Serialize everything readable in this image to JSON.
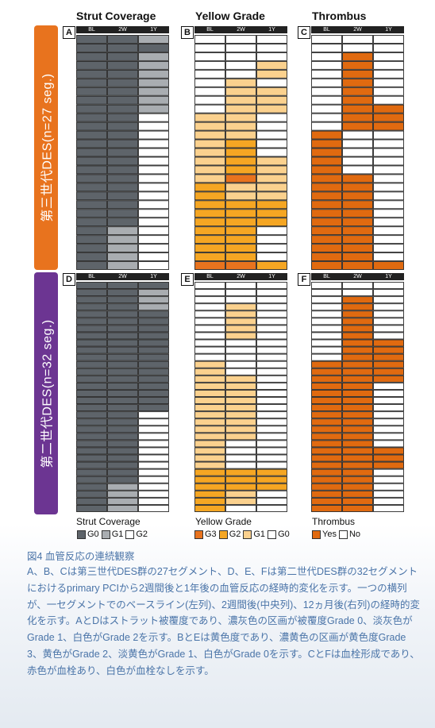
{
  "column_titles": [
    "Strut Coverage",
    "Yellow Grade",
    "Thrombus"
  ],
  "row_labels": [
    "第三世代DES(n=27 seg.)",
    "第二世代DES(n=32 seg.)"
  ],
  "time_labels": [
    "BL",
    "2W",
    "1Y"
  ],
  "colors": {
    "sidebar_top": "#e8731e",
    "sidebar_bottom": "#6c3592",
    "cov": {
      "G0": "#5e646a",
      "G1": "#a9adb1",
      "G2": "#ffffff"
    },
    "yel": {
      "G3": "#e8731e",
      "G2": "#f5a623",
      "G1": "#fbd18e",
      "G0": "#ffffff"
    },
    "thr": {
      "Yes": "#e06a10",
      "No": "#ffffff"
    }
  },
  "chart_data": [
    {
      "type": "heatmap",
      "panel": "A",
      "columns": [
        "BL",
        "2W",
        "1Y"
      ],
      "rows": [
        [
          0,
          0,
          1
        ],
        [
          0,
          0,
          0
        ],
        [
          0,
          0,
          1
        ],
        [
          0,
          0,
          1
        ],
        [
          0,
          0,
          1
        ],
        [
          0,
          0,
          1
        ],
        [
          0,
          0,
          1
        ],
        [
          0,
          0,
          1
        ],
        [
          0,
          0,
          1
        ],
        [
          0,
          0,
          2
        ],
        [
          0,
          0,
          2
        ],
        [
          0,
          0,
          2
        ],
        [
          0,
          0,
          2
        ],
        [
          0,
          0,
          2
        ],
        [
          0,
          0,
          2
        ],
        [
          0,
          0,
          2
        ],
        [
          0,
          0,
          2
        ],
        [
          0,
          0,
          2
        ],
        [
          0,
          0,
          2
        ],
        [
          0,
          0,
          2
        ],
        [
          0,
          0,
          2
        ],
        [
          0,
          0,
          2
        ],
        [
          0,
          1,
          2
        ],
        [
          0,
          1,
          2
        ],
        [
          0,
          1,
          2
        ],
        [
          0,
          1,
          2
        ],
        [
          0,
          1,
          2
        ]
      ]
    },
    {
      "type": "heatmap",
      "panel": "B",
      "columns": [
        "BL",
        "2W",
        "1Y"
      ],
      "rows": [
        [
          0,
          0,
          0
        ],
        [
          0,
          0,
          0
        ],
        [
          0,
          0,
          0
        ],
        [
          0,
          0,
          1
        ],
        [
          0,
          0,
          1
        ],
        [
          0,
          1,
          0
        ],
        [
          0,
          1,
          1
        ],
        [
          0,
          1,
          1
        ],
        [
          0,
          1,
          1
        ],
        [
          1,
          1,
          0
        ],
        [
          1,
          1,
          0
        ],
        [
          1,
          1,
          0
        ],
        [
          1,
          2,
          0
        ],
        [
          1,
          2,
          0
        ],
        [
          1,
          2,
          1
        ],
        [
          1,
          2,
          1
        ],
        [
          1,
          3,
          1
        ],
        [
          2,
          1,
          1
        ],
        [
          2,
          1,
          1
        ],
        [
          2,
          2,
          2
        ],
        [
          2,
          2,
          2
        ],
        [
          2,
          2,
          2
        ],
        [
          2,
          2,
          0
        ],
        [
          2,
          2,
          0
        ],
        [
          2,
          2,
          0
        ],
        [
          2,
          2,
          0
        ],
        [
          3,
          3,
          2
        ]
      ]
    },
    {
      "type": "heatmap",
      "panel": "C",
      "columns": [
        "BL",
        "2W",
        "1Y"
      ],
      "rows": [
        [
          0,
          0,
          0
        ],
        [
          0,
          0,
          0
        ],
        [
          0,
          1,
          0
        ],
        [
          0,
          1,
          0
        ],
        [
          0,
          1,
          0
        ],
        [
          0,
          1,
          0
        ],
        [
          0,
          1,
          0
        ],
        [
          0,
          1,
          0
        ],
        [
          0,
          1,
          1
        ],
        [
          0,
          1,
          1
        ],
        [
          0,
          1,
          1
        ],
        [
          1,
          0,
          0
        ],
        [
          1,
          0,
          0
        ],
        [
          1,
          0,
          0
        ],
        [
          1,
          0,
          0
        ],
        [
          1,
          0,
          0
        ],
        [
          1,
          1,
          0
        ],
        [
          1,
          1,
          0
        ],
        [
          1,
          1,
          0
        ],
        [
          1,
          1,
          0
        ],
        [
          1,
          1,
          0
        ],
        [
          1,
          1,
          0
        ],
        [
          1,
          1,
          0
        ],
        [
          1,
          1,
          0
        ],
        [
          1,
          1,
          0
        ],
        [
          1,
          1,
          0
        ],
        [
          1,
          1,
          1
        ]
      ]
    },
    {
      "type": "heatmap",
      "panel": "D",
      "columns": [
        "BL",
        "2W",
        "1Y"
      ],
      "rows": [
        [
          0,
          0,
          0
        ],
        [
          0,
          0,
          1
        ],
        [
          0,
          0,
          1
        ],
        [
          0,
          0,
          1
        ],
        [
          0,
          0,
          0
        ],
        [
          0,
          0,
          0
        ],
        [
          0,
          0,
          0
        ],
        [
          0,
          0,
          0
        ],
        [
          0,
          0,
          0
        ],
        [
          0,
          0,
          0
        ],
        [
          0,
          0,
          0
        ],
        [
          0,
          0,
          0
        ],
        [
          0,
          0,
          0
        ],
        [
          0,
          0,
          0
        ],
        [
          0,
          0,
          0
        ],
        [
          0,
          0,
          0
        ],
        [
          0,
          0,
          0
        ],
        [
          0,
          0,
          0
        ],
        [
          0,
          0,
          2
        ],
        [
          0,
          0,
          2
        ],
        [
          0,
          0,
          2
        ],
        [
          0,
          0,
          2
        ],
        [
          0,
          0,
          2
        ],
        [
          0,
          0,
          2
        ],
        [
          0,
          0,
          2
        ],
        [
          0,
          0,
          2
        ],
        [
          0,
          0,
          2
        ],
        [
          0,
          0,
          2
        ],
        [
          0,
          1,
          2
        ],
        [
          0,
          1,
          2
        ],
        [
          0,
          1,
          2
        ],
        [
          0,
          1,
          2
        ]
      ]
    },
    {
      "type": "heatmap",
      "panel": "E",
      "columns": [
        "BL",
        "2W",
        "1Y"
      ],
      "rows": [
        [
          0,
          0,
          0
        ],
        [
          0,
          0,
          0
        ],
        [
          0,
          0,
          0
        ],
        [
          0,
          1,
          0
        ],
        [
          0,
          1,
          0
        ],
        [
          0,
          1,
          0
        ],
        [
          0,
          1,
          0
        ],
        [
          0,
          1,
          0
        ],
        [
          0,
          0,
          0
        ],
        [
          0,
          0,
          0
        ],
        [
          0,
          0,
          0
        ],
        [
          1,
          0,
          0
        ],
        [
          1,
          0,
          0
        ],
        [
          1,
          1,
          0
        ],
        [
          1,
          1,
          0
        ],
        [
          1,
          1,
          0
        ],
        [
          1,
          1,
          0
        ],
        [
          1,
          1,
          0
        ],
        [
          1,
          1,
          0
        ],
        [
          1,
          1,
          0
        ],
        [
          1,
          1,
          0
        ],
        [
          1,
          1,
          0
        ],
        [
          1,
          0,
          0
        ],
        [
          1,
          0,
          0
        ],
        [
          1,
          0,
          0
        ],
        [
          1,
          0,
          0
        ],
        [
          2,
          2,
          2
        ],
        [
          2,
          2,
          2
        ],
        [
          2,
          2,
          2
        ],
        [
          2,
          1,
          0
        ],
        [
          2,
          1,
          0
        ],
        [
          2,
          0,
          0
        ]
      ]
    },
    {
      "type": "heatmap",
      "panel": "F",
      "columns": [
        "BL",
        "2W",
        "1Y"
      ],
      "rows": [
        [
          0,
          0,
          0
        ],
        [
          0,
          0,
          0
        ],
        [
          0,
          1,
          0
        ],
        [
          0,
          1,
          0
        ],
        [
          0,
          1,
          0
        ],
        [
          0,
          1,
          0
        ],
        [
          0,
          1,
          0
        ],
        [
          0,
          1,
          0
        ],
        [
          0,
          1,
          1
        ],
        [
          0,
          1,
          1
        ],
        [
          0,
          1,
          1
        ],
        [
          1,
          1,
          1
        ],
        [
          1,
          1,
          1
        ],
        [
          1,
          1,
          1
        ],
        [
          1,
          1,
          0
        ],
        [
          1,
          1,
          0
        ],
        [
          1,
          1,
          0
        ],
        [
          1,
          1,
          0
        ],
        [
          1,
          1,
          0
        ],
        [
          1,
          1,
          0
        ],
        [
          1,
          1,
          0
        ],
        [
          1,
          1,
          0
        ],
        [
          1,
          1,
          0
        ],
        [
          1,
          1,
          1
        ],
        [
          1,
          1,
          1
        ],
        [
          1,
          1,
          1
        ],
        [
          1,
          1,
          0
        ],
        [
          1,
          1,
          0
        ],
        [
          1,
          1,
          0
        ],
        [
          1,
          1,
          0
        ],
        [
          1,
          1,
          0
        ],
        [
          1,
          1,
          0
        ]
      ]
    }
  ],
  "legend": {
    "coverage": {
      "title": "Strut Coverage",
      "items": [
        "G0",
        "G1",
        "G2"
      ]
    },
    "yellow": {
      "title": "Yellow Grade",
      "items": [
        "G3",
        "G2",
        "G1",
        "G0"
      ]
    },
    "thrombus": {
      "title": "Thrombus",
      "items": [
        "Yes",
        "No"
      ]
    }
  },
  "caption": {
    "title": "図4 血管反応の連続観察",
    "body": "A、B、Cは第三世代DES群の27セグメント、D、E、Fは第二世代DES群の32セグメントにおけるprimary PCIから2週間後と1年後の血管反応の経時的変化を示す。一つの横列が、一セグメントでのベースライン(左列)、2週間後(中央列)、12ヵ月後(右列)の経時的変化を示す。AとDはストラット被覆度であり、濃灰色の区画が被覆度Grade 0、淡灰色がGrade 1、白色がGrade 2を示す。BとEは黄色度であり、濃黄色の区画が黄色度Grade 3、黄色がGrade 2、淡黄色がGrade 1、白色がGrade 0を示す。CとFは血栓形成であり、赤色が血栓あり、白色が血栓なしを示す。"
  }
}
